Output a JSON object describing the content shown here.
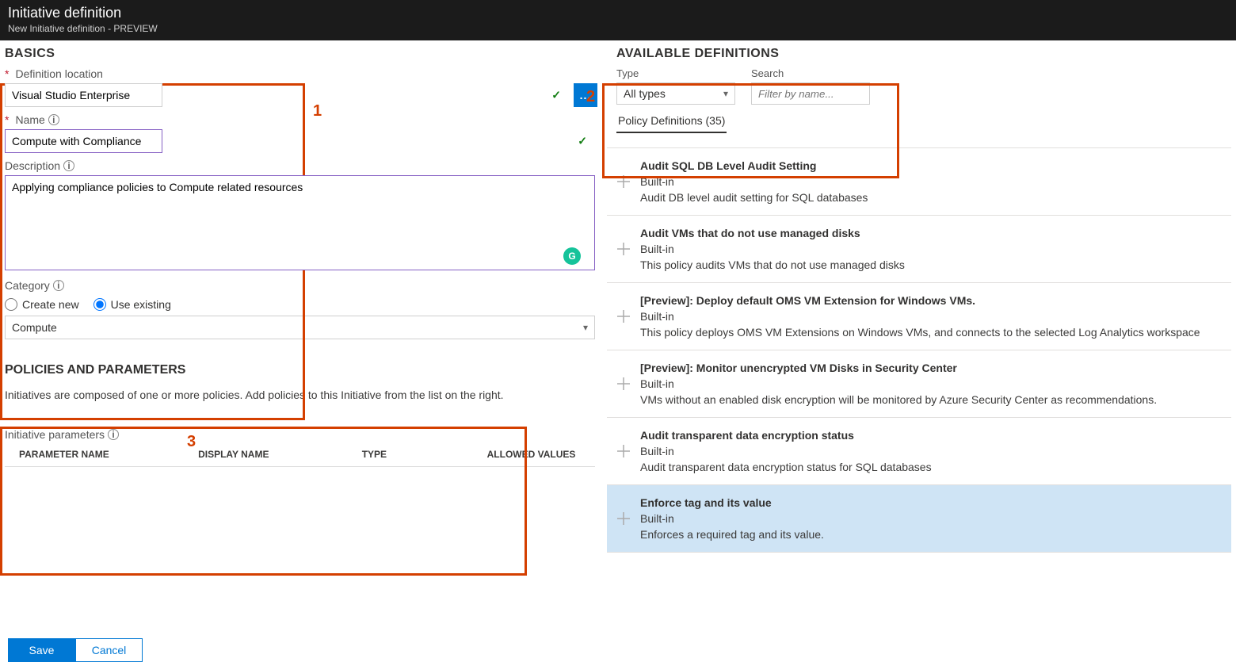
{
  "header": {
    "title": "Initiative definition",
    "subtitle": "New Initiative definition - PREVIEW"
  },
  "annotations": {
    "n1": "1",
    "n2": "2",
    "n3": "3"
  },
  "basics": {
    "heading": "BASICS",
    "defloc_label": "Definition location",
    "defloc_value": "Visual Studio Enterprise",
    "more_btn": "...",
    "name_label": "Name",
    "name_value": "Compute with Compliance",
    "desc_label": "Description",
    "desc_value": "Applying compliance policies to Compute related resources",
    "category_label": "Category",
    "cat_opt_new": "Create new",
    "cat_opt_existing": "Use existing",
    "cat_value": "Compute",
    "g_badge": "G"
  },
  "policies": {
    "heading": "POLICIES AND PARAMETERS",
    "sub": "Initiatives are composed of one or more policies. Add policies to this Initiative from the list on the right.",
    "ip_label": "Initiative parameters",
    "cols": {
      "c1": "PARAMETER NAME",
      "c2": "DISPLAY NAME",
      "c3": "TYPE",
      "c4": "ALLOWED VALUES"
    }
  },
  "available": {
    "heading": "AVAILABLE DEFINITIONS",
    "type_label": "Type",
    "type_value": "All types",
    "search_label": "Search",
    "search_placeholder": "Filter by name...",
    "tab_label": "Policy Definitions (35)"
  },
  "definitions": [
    {
      "title": "Audit SQL DB Level Audit Setting",
      "type": "Built-in",
      "desc": "Audit DB level audit setting for SQL databases"
    },
    {
      "title": "Audit VMs that do not use managed disks",
      "type": "Built-in",
      "desc": "This policy audits VMs that do not use managed disks"
    },
    {
      "title": "[Preview]: Deploy default OMS VM Extension for Windows VMs.",
      "type": "Built-in",
      "desc": "This policy deploys OMS VM Extensions on Windows VMs, and connects to the selected Log Analytics workspace"
    },
    {
      "title": "[Preview]: Monitor unencrypted VM Disks in Security Center",
      "type": "Built-in",
      "desc": "VMs without an enabled disk encryption will be monitored by Azure Security Center as recommendations."
    },
    {
      "title": "Audit transparent data encryption status",
      "type": "Built-in",
      "desc": "Audit transparent data encryption status for SQL databases"
    },
    {
      "title": "Enforce tag and its value",
      "type": "Built-in",
      "desc": "Enforces a required tag and its value."
    }
  ],
  "highlight_index": 5,
  "footer": {
    "save": "Save",
    "cancel": "Cancel"
  },
  "colors": {
    "accent": "#0078d4",
    "annotate": "#d43f00",
    "highlight": "#cfe4f5"
  }
}
